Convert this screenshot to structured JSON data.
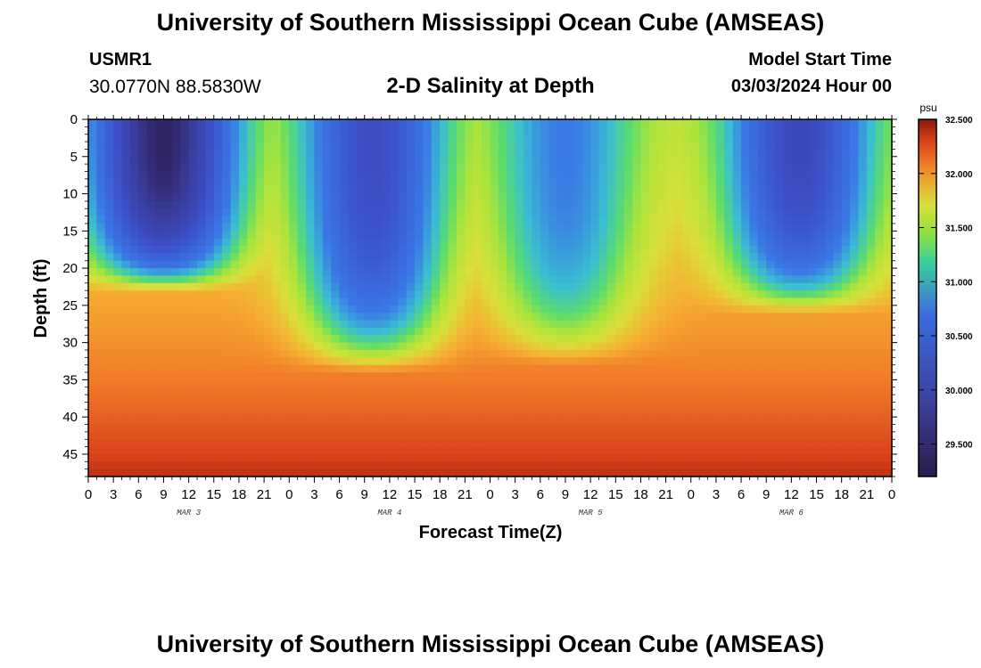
{
  "header": {
    "title": "University of Southern Mississippi Ocean Cube (AMSEAS)",
    "station": "USMR1",
    "coords": "30.0770N  88.5830W",
    "subtitle": "2-D Salinity at Depth",
    "model_start_label": "Model Start Time",
    "model_start_value": "03/03/2024 Hour 00"
  },
  "footer": {
    "title": "University of Southern Mississippi Ocean Cube (AMSEAS)"
  },
  "colors": {
    "low": "#2a1a4a",
    "mid_blue": "#3b5bd0",
    "green": "#6be05a",
    "yellow": "#d8e03a",
    "orange": "#f08a2a",
    "high": "#8a1808"
  },
  "chart_data": {
    "type": "heatmap",
    "title": "2-D Salinity at Depth",
    "xlabel": "Forecast Time(Z)",
    "ylabel": "Depth (ft)",
    "xlim_hours": [
      0,
      96
    ],
    "ylim_ft": [
      0,
      48
    ],
    "x_ticks": [
      "0",
      "3",
      "6",
      "9",
      "12",
      "15",
      "18",
      "21",
      "0",
      "3",
      "6",
      "9",
      "12",
      "15",
      "18",
      "21",
      "0",
      "3",
      "6",
      "9",
      "12",
      "15",
      "18",
      "21",
      "0",
      "3",
      "6",
      "9",
      "12",
      "15",
      "18",
      "21",
      "0"
    ],
    "day_labels": [
      {
        "label": "MAR 3",
        "hour": 12
      },
      {
        "label": "MAR 4",
        "hour": 36
      },
      {
        "label": "MAR 5",
        "hour": 60
      },
      {
        "label": "MAR 6",
        "hour": 84
      }
    ],
    "y_ticks": [
      0,
      5,
      10,
      15,
      20,
      25,
      30,
      35,
      40,
      45
    ],
    "colorbar": {
      "unit": "psu",
      "min": 29.2,
      "max": 32.5,
      "ticks": [
        "32.500",
        "32.000",
        "31.500",
        "31.000",
        "30.500",
        "30.000",
        "29.500"
      ]
    },
    "fresh_lenses": [
      {
        "center_hour": 9,
        "min_psu": 29.4,
        "bottom_depth_ft": 23
      },
      {
        "center_hour": 34,
        "min_psu": 30.4,
        "bottom_depth_ft": 34
      },
      {
        "center_hour": 57,
        "min_psu": 31.2,
        "bottom_depth_ft": 33
      },
      {
        "center_hour": 85,
        "min_psu": 30.3,
        "bottom_depth_ft": 26
      }
    ],
    "salinity_range_psu": [
      29.4,
      32.5
    ]
  }
}
